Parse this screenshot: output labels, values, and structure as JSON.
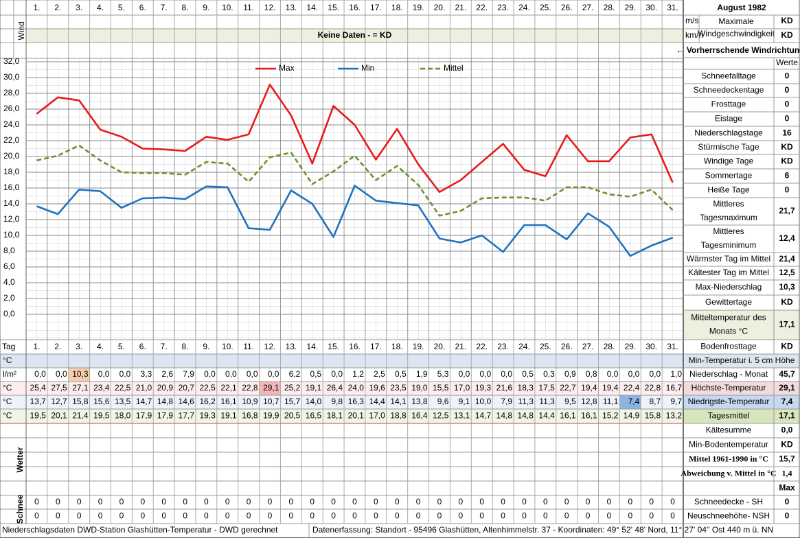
{
  "header": {
    "title": "August 1982",
    "wind_label": "Wind",
    "wind_units": [
      "m/s",
      "km/h"
    ],
    "wind_max_label": [
      "Maximale",
      "Windgeschwindigkeit"
    ],
    "wind_values": [
      "KD",
      "KD"
    ],
    "no_data": "Keine Daten -  = KD",
    "wind_direction": "← Vorherrschende Windrichtung"
  },
  "chart_data": {
    "type": "line",
    "categories": [
      "1.",
      "2.",
      "3.",
      "4.",
      "5.",
      "6.",
      "7.",
      "8.",
      "9.",
      "10.",
      "11.",
      "12.",
      "13.",
      "14.",
      "15.",
      "16.",
      "17.",
      "18.",
      "19.",
      "20.",
      "21.",
      "22.",
      "23.",
      "24.",
      "25.",
      "26.",
      "27.",
      "28.",
      "29.",
      "30.",
      "31."
    ],
    "series": [
      {
        "name": "Max",
        "color": "#e8191b",
        "dash": false,
        "values": [
          25.4,
          27.5,
          27.1,
          23.4,
          22.5,
          21.0,
          20.9,
          20.7,
          22.5,
          22.1,
          22.8,
          29.1,
          25.2,
          19.1,
          26.4,
          24.0,
          19.6,
          23.5,
          19.0,
          15.5,
          17.0,
          19.3,
          21.6,
          18.3,
          17.5,
          22.7,
          19.4,
          19.4,
          22.4,
          22.8,
          16.7
        ]
      },
      {
        "name": "Min",
        "color": "#1f72c0",
        "dash": false,
        "values": [
          13.7,
          12.7,
          15.8,
          15.6,
          13.5,
          14.7,
          14.8,
          14.6,
          16.2,
          16.1,
          10.9,
          10.7,
          15.7,
          14.0,
          9.8,
          16.3,
          14.4,
          14.1,
          13.8,
          9.6,
          9.1,
          10.0,
          7.9,
          11.3,
          11.3,
          9.5,
          12.8,
          11.1,
          7.4,
          8.7,
          9.7
        ]
      },
      {
        "name": "Mittel",
        "color": "#6f8f2f",
        "dash": true,
        "values": [
          19.5,
          20.1,
          21.4,
          19.5,
          18.0,
          17.9,
          17.9,
          17.7,
          19.3,
          19.1,
          16.8,
          19.9,
          20.5,
          16.5,
          18.1,
          20.1,
          17.0,
          18.8,
          16.4,
          12.5,
          13.1,
          14.7,
          14.8,
          14.8,
          14.4,
          16.1,
          16.1,
          15.2,
          14.9,
          15.8,
          13.2
        ]
      }
    ],
    "ylim": [
      0,
      32
    ],
    "yticks": [
      {
        "value": 0,
        "label": "0,0"
      },
      {
        "value": 2,
        "label": "2,0"
      },
      {
        "value": 4,
        "label": "4,0"
      },
      {
        "value": 6,
        "label": "6,0"
      },
      {
        "value": 8,
        "label": "8,0"
      },
      {
        "value": 10,
        "label": "10,0"
      },
      {
        "value": 12,
        "label": "12,0"
      },
      {
        "value": 14,
        "label": "14,0"
      },
      {
        "value": 16,
        "label": "16,0"
      },
      {
        "value": 18,
        "label": "18,0"
      },
      {
        "value": 20,
        "label": "20,0"
      },
      {
        "value": 22,
        "label": "22,0"
      },
      {
        "value": 24,
        "label": "24,0"
      },
      {
        "value": 26,
        "label": "26,0"
      },
      {
        "value": 28,
        "label": "28,0"
      },
      {
        "value": 30,
        "label": "30,0"
      },
      {
        "value": 32,
        "label": "32,0"
      }
    ],
    "grid": true,
    "legend": "top"
  },
  "table": {
    "day_label": "Tag",
    "rows": [
      {
        "unit": "°C"
      },
      {
        "unit": "l/m²",
        "values": [
          "0,0",
          "0,0",
          "10,3",
          "0,0",
          "0,0",
          "3,3",
          "2,6",
          "7,9",
          "0,0",
          "0,0",
          "0,0",
          "0,0",
          "6,2",
          "0,5",
          "0,0",
          "1,2",
          "2,5",
          "0,5",
          "1,9",
          "5,3",
          "0,0",
          "0,0",
          "0,0",
          "0,5",
          "0,3",
          "0,9",
          "0,8",
          "0,0",
          "0,0",
          "0,0",
          "1,0"
        ]
      },
      {
        "unit": "°C",
        "values": [
          "25,4",
          "27,5",
          "27,1",
          "23,4",
          "22,5",
          "21,0",
          "20,9",
          "20,7",
          "22,5",
          "22,1",
          "22,8",
          "29,1",
          "25,2",
          "19,1",
          "26,4",
          "24,0",
          "19,6",
          "23,5",
          "19,0",
          "15,5",
          "17,0",
          "19,3",
          "21,6",
          "18,3",
          "17,5",
          "22,7",
          "19,4",
          "19,4",
          "22,4",
          "22,8",
          "16,7"
        ]
      },
      {
        "unit": "°C",
        "values": [
          "13,7",
          "12,7",
          "15,8",
          "15,6",
          "13,5",
          "14,7",
          "14,8",
          "14,6",
          "16,2",
          "16,1",
          "10,9",
          "10,7",
          "15,7",
          "14,0",
          "9,8",
          "16,3",
          "14,4",
          "14,1",
          "13,8",
          "9,6",
          "9,1",
          "10,0",
          "7,9",
          "11,3",
          "11,3",
          "9,5",
          "12,8",
          "11,1",
          "7,4",
          "8,7",
          "9,7"
        ]
      },
      {
        "unit": "°C",
        "values": [
          "19,5",
          "20,1",
          "21,4",
          "19,5",
          "18,0",
          "17,9",
          "17,9",
          "17,7",
          "19,3",
          "19,1",
          "16,8",
          "19,9",
          "20,5",
          "16,5",
          "18,1",
          "20,1",
          "17,0",
          "18,8",
          "16,4",
          "12,5",
          "13,1",
          "14,7",
          "14,8",
          "14,8",
          "14,4",
          "16,1",
          "16,1",
          "15,2",
          "14,9",
          "15,8",
          "13,2"
        ]
      }
    ],
    "weather_label": "Wetter",
    "snow_label": "Schnee",
    "snow_rows": [
      [
        "0",
        "0",
        "0",
        "0",
        "0",
        "0",
        "0",
        "0",
        "0",
        "0",
        "0",
        "0",
        "0",
        "0",
        "0",
        "0",
        "0",
        "0",
        "0",
        "0",
        "0",
        "0",
        "0",
        "0",
        "0",
        "0",
        "0",
        "0",
        "0",
        "0",
        "0"
      ],
      [
        "0",
        "0",
        "0",
        "0",
        "0",
        "0",
        "0",
        "0",
        "0",
        "0",
        "0",
        "0",
        "0",
        "0",
        "0",
        "0",
        "0",
        "0",
        "0",
        "0",
        "0",
        "0",
        "0",
        "0",
        "0",
        "0",
        "0",
        "0",
        "0",
        "0",
        "0"
      ]
    ]
  },
  "side": {
    "header": "Werte",
    "rows": [
      {
        "label": "Schneefalltage",
        "value": "0"
      },
      {
        "label": "Schneedeckentage",
        "value": "0"
      },
      {
        "label": "Frosttage",
        "value": "0"
      },
      {
        "label": "Eistage",
        "value": "0"
      },
      {
        "label": "Niederschlagstage",
        "value": "16"
      },
      {
        "label": "Stürmische Tage",
        "value": "KD"
      },
      {
        "label": "Windige Tage",
        "value": "KD"
      },
      {
        "label": "Sommertage",
        "value": "6"
      },
      {
        "label": "Heiße Tage",
        "value": "0"
      },
      {
        "label": [
          "Mittleres",
          "Tagesmaximum"
        ],
        "value": "21,7"
      },
      {
        "label": [
          "Mittleres",
          "Tagesminimum"
        ],
        "value": "12,4"
      },
      {
        "label": "Wärmster Tag im Mittel",
        "value": "21,4"
      },
      {
        "label": "Kältester Tag im Mittel",
        "value": "12,5"
      },
      {
        "label": "Max-Niederschlag",
        "value": "10,3"
      },
      {
        "label": "Gewittertage",
        "value": "KD"
      },
      {
        "label": [
          "Mitteltemperatur des",
          "Monats °C"
        ],
        "value": "17,1"
      },
      {
        "label": "Bodenfrosttage",
        "value": "KD"
      },
      {
        "label": "Min-Temperatur i. 5 cm Höhe"
      },
      {
        "label": "Niederschlag - Monat",
        "value": "45,7"
      },
      {
        "label": "Höchste-Temperatur",
        "value": "29,1"
      },
      {
        "label": "Niedrigste-Temperatur",
        "value": "7,4"
      },
      {
        "label": "Tagesmittel",
        "value": "17,1"
      },
      {
        "label": "Kältesumme",
        "value": "0,0"
      },
      {
        "label": "Min-Bodentemperatur",
        "value": "KD"
      },
      {
        "label": "Mittel 1961-1990 in °C",
        "value": "15,7"
      },
      {
        "label": "Abweichung v. Mittel in °C",
        "value": "1,4"
      },
      {
        "value": "Max"
      },
      {
        "label": "Schneedecke -   SH",
        "value": "0"
      },
      {
        "label": "Neuschneehöhe- NSH",
        "value": "0"
      }
    ]
  },
  "footer": {
    "left": "Niederschlagsdaten DWD-Station Glashütten-Temperatur -  DWD gerechnet",
    "right": "Datenerfassung:  Standort -  95496  Glashütten, Altenhimmelstr. 37 - Koordinaten:  49° 52' 48' Nord,   11° 27' 04'' Ost   440 m ü. NN"
  }
}
